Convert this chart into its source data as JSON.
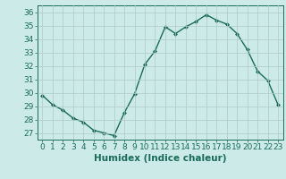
{
  "x": [
    0,
    1,
    2,
    3,
    4,
    5,
    6,
    7,
    8,
    9,
    10,
    11,
    12,
    13,
    14,
    15,
    16,
    17,
    18,
    19,
    20,
    21,
    22,
    23
  ],
  "y": [
    29.8,
    29.1,
    28.7,
    28.1,
    27.8,
    27.2,
    27.0,
    26.8,
    28.5,
    29.9,
    32.1,
    33.1,
    34.9,
    34.4,
    34.9,
    35.3,
    35.8,
    35.4,
    35.1,
    34.4,
    33.2,
    31.6,
    30.9,
    29.1
  ],
  "line_color": "#1a6b5a",
  "marker": "D",
  "marker_size": 2,
  "bg_color": "#cceae7",
  "grid_color": "#b0c8c5",
  "xlabel": "Humidex (Indice chaleur)",
  "ylim": [
    26.5,
    36.5
  ],
  "xlim": [
    -0.5,
    23.5
  ],
  "yticks": [
    27,
    28,
    29,
    30,
    31,
    32,
    33,
    34,
    35,
    36
  ],
  "xticks": [
    0,
    1,
    2,
    3,
    4,
    5,
    6,
    7,
    8,
    9,
    10,
    11,
    12,
    13,
    14,
    15,
    16,
    17,
    18,
    19,
    20,
    21,
    22,
    23
  ],
  "tick_color": "#1a6b5a",
  "axis_color": "#1a6b5a",
  "xlabel_fontsize": 7.5,
  "tick_fontsize": 6.5
}
